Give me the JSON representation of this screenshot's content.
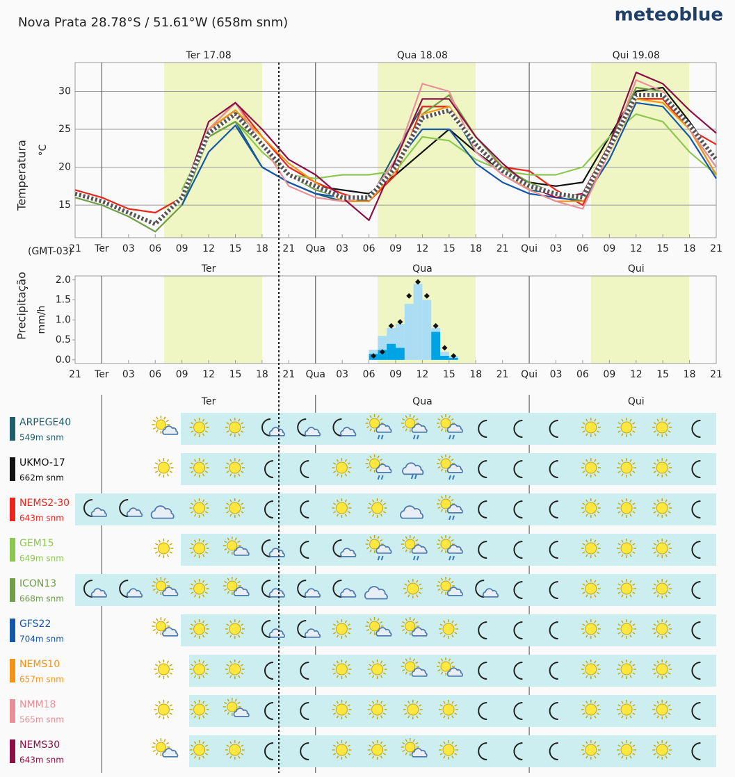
{
  "header": {
    "location": "Nova Prata  28.78°S / 51.61°W (658m snm)",
    "brand": "meteoblue"
  },
  "chart_data": [
    {
      "type": "line",
      "ylabel": "Temperatura",
      "yunit": "°C",
      "timezone": "(GMT-03)",
      "day_labels": [
        "Ter 17.08",
        "Qua 18.08",
        "Qui 19.08"
      ],
      "x": [
        0,
        3,
        6,
        9,
        12,
        15,
        18,
        21,
        24,
        27,
        30,
        33,
        36,
        39,
        42,
        45,
        48,
        51,
        54,
        57,
        60,
        63,
        66,
        69,
        72
      ],
      "xlim": [
        0,
        72
      ],
      "ylim": [
        10.7,
        33.8
      ],
      "yticks": [
        15,
        20,
        25,
        30
      ],
      "grid": true,
      "xticks": [
        {
          "value": 0,
          "label": "21"
        },
        {
          "value": 3,
          "label": "Ter"
        },
        {
          "value": 6,
          "label": "03"
        },
        {
          "value": 9,
          "label": "06"
        },
        {
          "value": 12,
          "label": "09"
        },
        {
          "value": 15,
          "label": "12"
        },
        {
          "value": 18,
          "label": "15"
        },
        {
          "value": 21,
          "label": "18"
        },
        {
          "value": 24,
          "label": "21"
        },
        {
          "value": 27,
          "label": "Qua"
        },
        {
          "value": 30,
          "label": "03"
        },
        {
          "value": 33,
          "label": "06"
        },
        {
          "value": 36,
          "label": "09"
        },
        {
          "value": 39,
          "label": "12"
        },
        {
          "value": 42,
          "label": "15"
        },
        {
          "value": 45,
          "label": "18"
        },
        {
          "value": 48,
          "label": "21"
        },
        {
          "value": 51,
          "label": "Qui"
        },
        {
          "value": 54,
          "label": "03"
        },
        {
          "value": 57,
          "label": "06"
        },
        {
          "value": 60,
          "label": "09"
        },
        {
          "value": 63,
          "label": "12"
        },
        {
          "value": 66,
          "label": "15"
        },
        {
          "value": 69,
          "label": "18"
        },
        {
          "value": 72,
          "label": "21"
        }
      ],
      "series": [
        {
          "name": "ARPEGE40",
          "color": "#1d5f6e",
          "values": [
            null,
            null,
            null,
            null,
            17,
            24,
            26,
            20,
            18,
            16.5,
            15.5,
            15.5,
            22,
            28,
            28,
            22,
            19,
            17,
            16.5,
            16,
            22,
            29,
            29,
            25,
            19
          ]
        },
        {
          "name": "UKMO-17",
          "color": "#111111",
          "values": [
            null,
            null,
            null,
            null,
            16,
            25,
            27.5,
            23,
            19,
            17.5,
            17,
            16.5,
            19,
            22,
            25,
            22,
            19.5,
            18,
            17.5,
            18,
            24,
            30,
            30.5,
            26,
            21
          ]
        },
        {
          "name": "NEMS2-30",
          "color": "#e8281e",
          "values": [
            17,
            16,
            14.5,
            14,
            16,
            25,
            28.5,
            24,
            20,
            18,
            16.5,
            15.5,
            19,
            28,
            28,
            23,
            20,
            19.5,
            17,
            15,
            22,
            29,
            29,
            25,
            23
          ]
        },
        {
          "name": "GEM15",
          "color": "#8cc850",
          "values": [
            null,
            null,
            null,
            null,
            17,
            24,
            26,
            22,
            19,
            18.5,
            19,
            19,
            19.5,
            24,
            23.5,
            21,
            19.5,
            19,
            19,
            20,
            24,
            27,
            26,
            22,
            19
          ]
        },
        {
          "name": "ICON13",
          "color": "#6f9e46",
          "values": [
            16,
            15,
            13.5,
            11.5,
            15,
            24,
            26,
            23,
            19,
            17,
            16,
            15.5,
            20,
            27,
            29.5,
            24,
            20,
            18,
            16.5,
            15.5,
            23,
            30.5,
            30,
            25,
            20
          ]
        },
        {
          "name": "GFS22",
          "color": "#1458a6",
          "values": [
            null,
            null,
            null,
            null,
            15,
            22,
            25.5,
            20,
            18,
            16.5,
            16,
            15.5,
            20.5,
            25,
            25,
            20.5,
            18,
            16.5,
            16,
            15.5,
            21,
            28.5,
            28,
            24,
            18.5
          ]
        },
        {
          "name": "NEMS10",
          "color": "#f39418",
          "values": [
            null,
            null,
            null,
            null,
            16,
            25,
            27.5,
            24,
            20.5,
            18,
            15.5,
            15.5,
            19.5,
            27,
            28,
            23,
            19.5,
            17,
            15.5,
            15.5,
            22,
            29,
            28.5,
            25,
            19
          ]
        },
        {
          "name": "NMM18",
          "color": "#e8909a",
          "values": [
            null,
            null,
            null,
            null,
            16,
            25,
            28.5,
            23,
            17.5,
            16,
            15.5,
            16,
            21,
            31,
            30,
            22,
            19,
            17,
            15.5,
            14.5,
            22,
            31.5,
            30,
            25,
            20
          ]
        },
        {
          "name": "NEMS30",
          "color": "#8c1044",
          "values": [
            null,
            null,
            null,
            null,
            16,
            26,
            28.5,
            25,
            21,
            19,
            16,
            13,
            21,
            29,
            29,
            24,
            20.5,
            17.5,
            16,
            16.5,
            23,
            32.5,
            31,
            27.5,
            24.5
          ]
        },
        {
          "color": "#555555",
          "style": "dotted",
          "values": [
            16.5,
            15.5,
            14,
            12.5,
            16,
            24.5,
            27,
            23,
            19,
            17.5,
            16,
            16,
            20,
            26.5,
            27.5,
            23,
            19.5,
            17.5,
            16.5,
            16,
            22.5,
            29.5,
            29.5,
            25.5,
            21
          ]
        }
      ]
    },
    {
      "type": "bar",
      "ylabel": "Precipitação",
      "yunit": "mm/h",
      "day_labels": [
        "Ter",
        "Qua",
        "Qui"
      ],
      "x": [
        33,
        34,
        35,
        36,
        37,
        38,
        39,
        40,
        41,
        42
      ],
      "xlim": [
        0,
        72
      ],
      "ylim": [
        -0.09,
        2.1
      ],
      "yticks": [
        {
          "value": 0,
          "label": "0.0"
        },
        0.5,
        {
          "value": 1,
          "label": "1.0"
        },
        1.5,
        {
          "value": 2,
          "label": "2.0"
        }
      ],
      "xticks": [
        {
          "value": 0,
          "label": "21"
        },
        {
          "value": 3,
          "label": "Ter"
        },
        {
          "value": 6,
          "label": "03"
        },
        {
          "value": 9,
          "label": "06"
        },
        {
          "value": 12,
          "label": "09"
        },
        {
          "value": 15,
          "label": "12"
        },
        {
          "value": 18,
          "label": "15"
        },
        {
          "value": 21,
          "label": "18"
        },
        {
          "value": 24,
          "label": "21"
        },
        {
          "value": 27,
          "label": "Qua"
        },
        {
          "value": 30,
          "label": "03"
        },
        {
          "value": 33,
          "label": "06"
        },
        {
          "value": 36,
          "label": "09"
        },
        {
          "value": 39,
          "label": "12"
        },
        {
          "value": 42,
          "label": "15"
        },
        {
          "value": 45,
          "label": "18"
        },
        {
          "value": 48,
          "label": "21"
        },
        {
          "value": 51,
          "label": "Qui"
        },
        {
          "value": 54,
          "label": "03"
        },
        {
          "value": 57,
          "label": "06"
        },
        {
          "value": 60,
          "label": "09"
        },
        {
          "value": 63,
          "label": "12"
        },
        {
          "value": 66,
          "label": "15"
        },
        {
          "value": 69,
          "label": "18"
        },
        {
          "value": 72,
          "label": "21"
        }
      ],
      "series": [
        {
          "color": "#aadcf4",
          "values": [
            0.25,
            0.6,
            0.8,
            0.9,
            1.4,
            1.9,
            1.5,
            0.8,
            0.2,
            0.1
          ]
        },
        {
          "color": "#00a4e4",
          "values": [
            0.15,
            0.25,
            0.4,
            0.3,
            0,
            0,
            0,
            0.7,
            0.1,
            0.05
          ]
        },
        {
          "color": "#111111",
          "style": "points",
          "values": [
            0.1,
            0.2,
            0.85,
            0.95,
            1.6,
            1.95,
            1.6,
            0.85,
            0.3,
            0.1
          ]
        }
      ]
    }
  ],
  "icon_table": {
    "day_labels": [
      "Ter",
      "Qua",
      "Qui"
    ],
    "elevations": [
      "549m snm",
      "662m snm",
      "643m snm",
      "649m snm",
      "668m snm",
      "704m snm",
      "657m snm",
      "565m snm",
      "643m snm"
    ]
  }
}
